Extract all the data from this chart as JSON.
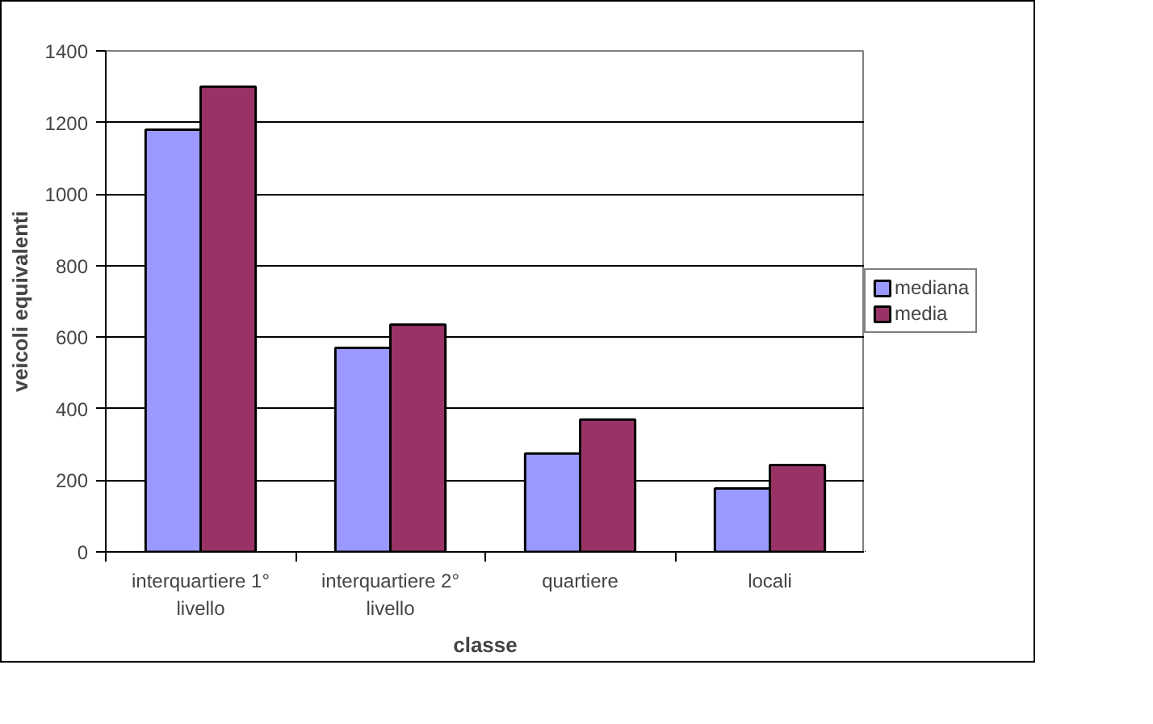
{
  "chart_data": {
    "type": "bar",
    "xlabel": "classe",
    "ylabel": "veicoli equivalenti",
    "categories": [
      "interquartiere 1° livello",
      "interquartiere 2° livello",
      "quartiere",
      "locali"
    ],
    "series": [
      {
        "name": "mediana",
        "color": "#9999ff",
        "values": [
          1180,
          570,
          275,
          177
        ]
      },
      {
        "name": "media",
        "color": "#993366",
        "values": [
          1300,
          635,
          370,
          243
        ]
      }
    ],
    "ylim": [
      0,
      1400
    ],
    "yticks": [
      0,
      200,
      400,
      600,
      800,
      1000,
      1200,
      1400
    ],
    "grid": "y",
    "legend": "right"
  }
}
